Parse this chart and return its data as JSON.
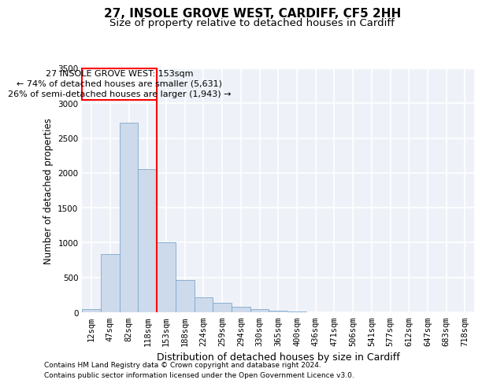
{
  "title": "27, INSOLE GROVE WEST, CARDIFF, CF5 2HH",
  "subtitle": "Size of property relative to detached houses in Cardiff",
  "xlabel": "Distribution of detached houses by size in Cardiff",
  "ylabel": "Number of detached properties",
  "footnote1": "Contains HM Land Registry data © Crown copyright and database right 2024.",
  "footnote2": "Contains public sector information licensed under the Open Government Licence v3.0.",
  "annotation_line1": "27 INSOLE GROVE WEST: 153sqm",
  "annotation_line2": "← 74% of detached houses are smaller (5,631)",
  "annotation_line3": "26% of semi-detached houses are larger (1,943) →",
  "bar_color": "#ccdaeb",
  "bar_edge_color": "#7fa8cc",
  "red_line_col": 4,
  "ylim": [
    0,
    3500
  ],
  "yticks": [
    0,
    500,
    1000,
    1500,
    2000,
    2500,
    3000,
    3500
  ],
  "categories": [
    "12sqm",
    "47sqm",
    "82sqm",
    "118sqm",
    "153sqm",
    "188sqm",
    "224sqm",
    "259sqm",
    "294sqm",
    "330sqm",
    "365sqm",
    "400sqm",
    "436sqm",
    "471sqm",
    "506sqm",
    "541sqm",
    "577sqm",
    "612sqm",
    "647sqm",
    "683sqm",
    "718sqm"
  ],
  "values": [
    50,
    840,
    2720,
    2050,
    1010,
    460,
    210,
    135,
    80,
    40,
    20,
    10,
    5,
    3,
    2,
    1,
    0,
    0,
    0,
    0,
    0
  ],
  "background_color": "#eef2f8",
  "grid_color": "#ffffff",
  "title_fontsize": 11,
  "subtitle_fontsize": 9.5,
  "annot_fontsize": 8,
  "xlabel_fontsize": 9,
  "ylabel_fontsize": 8.5,
  "tick_fontsize": 7.5,
  "footnote_fontsize": 6.5
}
